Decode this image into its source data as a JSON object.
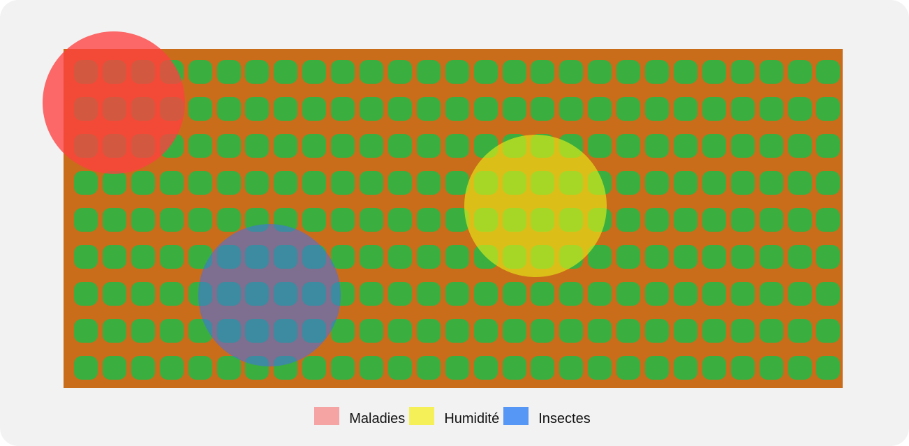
{
  "colors": {
    "background": "#f2f2f2",
    "soil": "#c96d1a",
    "plant": "#3aae3f"
  },
  "field": {
    "rows": 9,
    "cols": 27
  },
  "zones": [
    {
      "id": "maladies",
      "color": "#ff4040",
      "opacity": 0.78
    },
    {
      "id": "humidite",
      "color": "#e8f018",
      "opacity": 0.62
    },
    {
      "id": "insectes",
      "color": "#3f6ff0",
      "opacity": 0.55
    }
  ],
  "legend": [
    {
      "label": "Maladies",
      "color": "#f5a3a3"
    },
    {
      "label": "Humidité",
      "color": "#f5f057"
    },
    {
      "label": "Insectes",
      "color": "#5696f5"
    }
  ]
}
